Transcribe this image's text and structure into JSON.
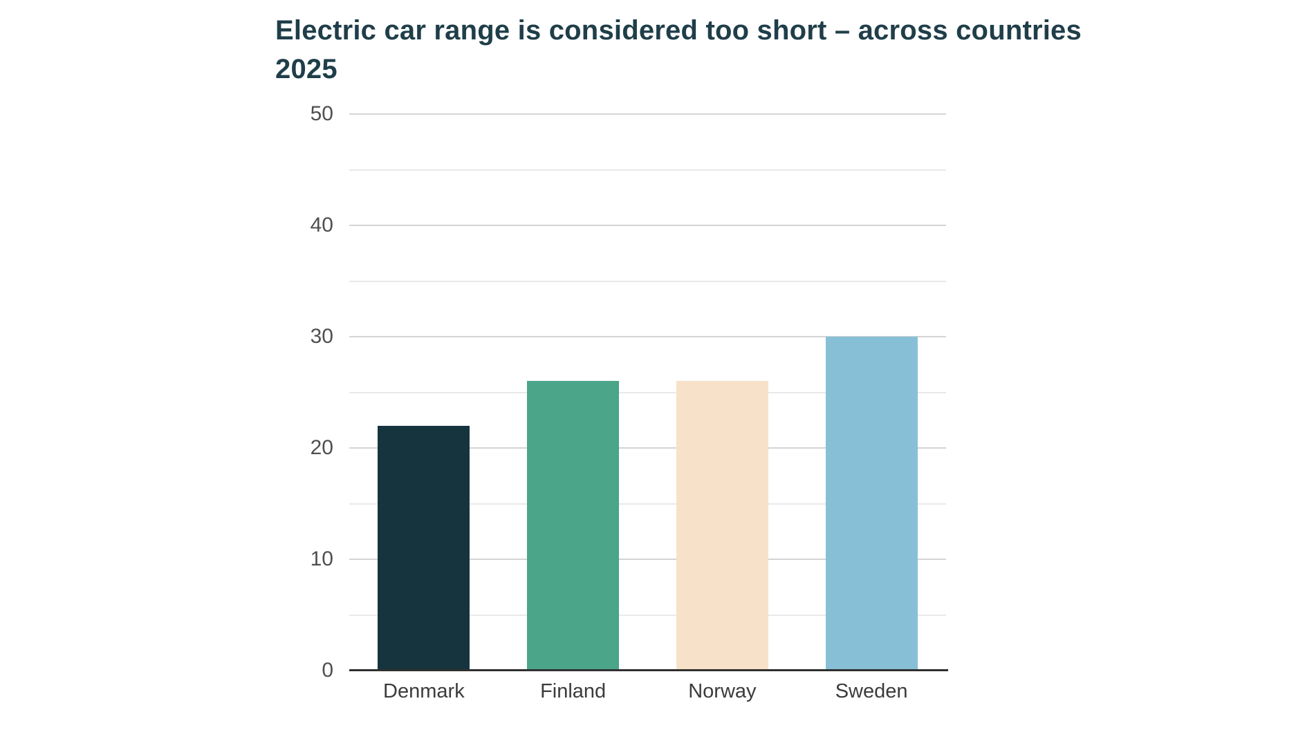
{
  "chart": {
    "title_line1": "Electric car range is considered too short – across countries",
    "title_line2": "2025",
    "title_color": "#1f3e49"
  },
  "chart_data": {
    "type": "bar",
    "title": "Electric car range is considered too short – across countries 2025",
    "categories": [
      "Denmark",
      "Finland",
      "Norway",
      "Sweden"
    ],
    "values": [
      22,
      26,
      26,
      30
    ],
    "bar_colors": [
      "#16343e",
      "#4aa589",
      "#f7e1c8",
      "#87c0d6"
    ],
    "xlabel": "",
    "ylabel": "",
    "ylim": [
      0,
      50
    ],
    "y_major_ticks": [
      0,
      10,
      20,
      30,
      40,
      50
    ],
    "y_minor_gridline_step": 5,
    "grid": "horizontal",
    "legend": "none",
    "axis_line_color": "#2f2f2f",
    "major_gridline_color": "#d4d4d4",
    "minor_gridline_color": "#e9e9e9",
    "tick_label_color": "#4f4f4f",
    "category_label_color": "#3b3b3b"
  }
}
